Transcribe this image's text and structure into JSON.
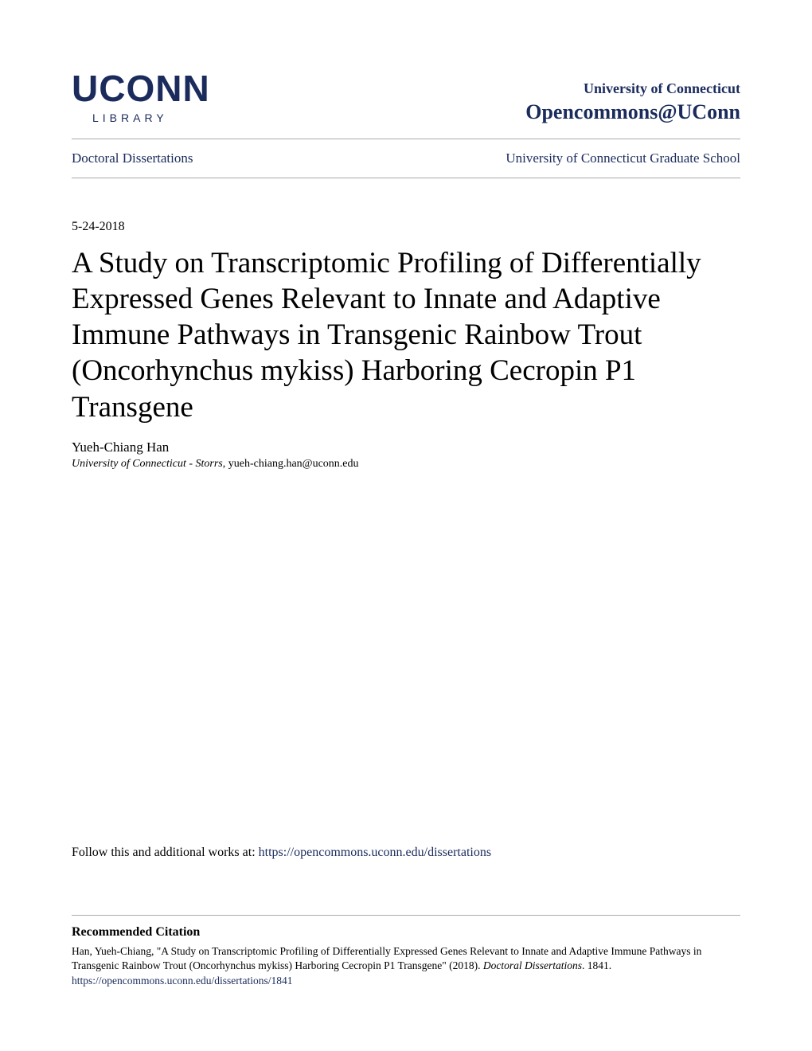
{
  "logo": {
    "main": "UCONN",
    "sub": "LIBRARY"
  },
  "institution": {
    "name": "University of Connecticut",
    "repository": "Opencommons@UConn"
  },
  "breadcrumb": {
    "left": "Doctoral Dissertations",
    "right": "University of Connecticut Graduate School"
  },
  "document": {
    "date": "5-24-2018",
    "title": "A Study on Transcriptomic Profiling of Differentially Expressed Genes Relevant to Innate and Adaptive Immune Pathways in Transgenic Rainbow Trout (Oncorhynchus mykiss) Harboring Cecropin P1 Transgene",
    "author": "Yueh-Chiang Han",
    "affiliation_institution": "University of Connecticut - Storrs",
    "affiliation_email": ", yueh-chiang.han@uconn.edu"
  },
  "follow": {
    "prefix": "Follow this and additional works at: ",
    "url": "https://opencommons.uconn.edu/dissertations"
  },
  "citation": {
    "heading": "Recommended Citation",
    "text_part1": "Han, Yueh-Chiang, \"A Study on Transcriptomic Profiling of Differentially Expressed Genes Relevant to Innate and Adaptive Immune Pathways in Transgenic Rainbow Trout (Oncorhynchus mykiss) Harboring Cecropin P1 Transgene\" (2018). ",
    "text_italic": "Doctoral Dissertations",
    "text_part2": ". 1841.",
    "url": "https://opencommons.uconn.edu/dissertations/1841"
  },
  "colors": {
    "brand_blue": "#1a2b5c",
    "text_black": "#000000",
    "divider_gray": "#aaaaaa",
    "background": "#ffffff"
  }
}
